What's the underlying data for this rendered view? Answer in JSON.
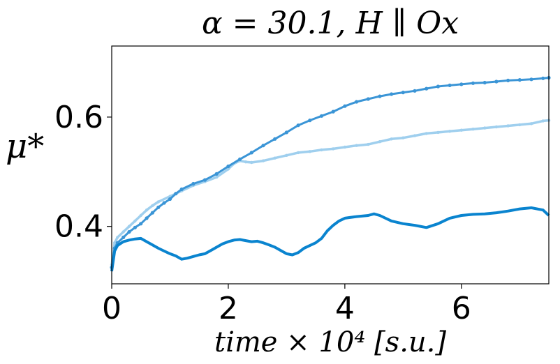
{
  "chart_data": {
    "type": "line",
    "title": "α = 30.1, H ∥ Ox",
    "title_vector_symbol": "H",
    "xlabel": "time × 10⁴ [s.u.]",
    "ylabel": "μ*",
    "xlim": [
      0,
      7.5
    ],
    "ylim": [
      0.295,
      0.73
    ],
    "xticks": [
      "0",
      "2",
      "4",
      "6"
    ],
    "yticks": [
      "0.4",
      "0.6"
    ],
    "grid": false,
    "series": [
      {
        "color": "#0a84cf",
        "width": 4,
        "x": [
          0,
          0.05,
          0.1,
          0.2,
          0.3,
          0.4,
          0.5,
          0.6,
          0.7,
          0.8,
          0.9,
          1.0,
          1.1,
          1.2,
          1.3,
          1.4,
          1.5,
          1.6,
          1.7,
          1.8,
          1.9,
          2.0,
          2.1,
          2.2,
          2.3,
          2.4,
          2.5,
          2.6,
          2.7,
          2.8,
          2.9,
          3.0,
          3.1,
          3.2,
          3.3,
          3.4,
          3.5,
          3.6,
          3.7,
          3.8,
          3.9,
          4.0,
          4.2,
          4.4,
          4.5,
          4.6,
          4.8,
          5.0,
          5.2,
          5.4,
          5.6,
          5.8,
          6.0,
          6.2,
          6.4,
          6.6,
          6.8,
          7.0,
          7.2,
          7.4,
          7.5
        ],
        "y": [
          0.318,
          0.355,
          0.365,
          0.372,
          0.375,
          0.377,
          0.378,
          0.372,
          0.366,
          0.36,
          0.355,
          0.35,
          0.346,
          0.34,
          0.342,
          0.345,
          0.348,
          0.35,
          0.356,
          0.362,
          0.368,
          0.372,
          0.375,
          0.376,
          0.374,
          0.372,
          0.373,
          0.37,
          0.366,
          0.362,
          0.356,
          0.35,
          0.348,
          0.352,
          0.36,
          0.365,
          0.37,
          0.378,
          0.392,
          0.402,
          0.41,
          0.415,
          0.418,
          0.42,
          0.423,
          0.42,
          0.41,
          0.405,
          0.402,
          0.398,
          0.405,
          0.415,
          0.42,
          0.422,
          0.423,
          0.425,
          0.428,
          0.432,
          0.434,
          0.43,
          0.42
        ]
      },
      {
        "color": "#3b95d6",
        "width": 3,
        "markers": "star",
        "x": [
          0,
          0.05,
          0.1,
          0.2,
          0.3,
          0.4,
          0.5,
          0.6,
          0.7,
          0.8,
          0.9,
          1.0,
          1.1,
          1.2,
          1.4,
          1.6,
          1.8,
          2.0,
          2.2,
          2.4,
          2.6,
          2.8,
          3.0,
          3.2,
          3.4,
          3.6,
          3.8,
          4.0,
          4.2,
          4.4,
          4.6,
          4.8,
          5.0,
          5.2,
          5.4,
          5.6,
          5.8,
          6.0,
          6.2,
          6.4,
          6.6,
          6.8,
          7.0,
          7.2,
          7.4,
          7.5
        ],
        "y": [
          0.325,
          0.36,
          0.37,
          0.38,
          0.39,
          0.398,
          0.405,
          0.415,
          0.425,
          0.435,
          0.443,
          0.45,
          0.46,
          0.468,
          0.478,
          0.485,
          0.496,
          0.51,
          0.523,
          0.535,
          0.548,
          0.56,
          0.572,
          0.585,
          0.594,
          0.602,
          0.61,
          0.62,
          0.628,
          0.633,
          0.638,
          0.642,
          0.645,
          0.648,
          0.652,
          0.656,
          0.658,
          0.66,
          0.662,
          0.663,
          0.665,
          0.667,
          0.668,
          0.669,
          0.671,
          0.672
        ]
      },
      {
        "color": "#9fcfee",
        "width": 3.5,
        "markers": "dot",
        "x": [
          0,
          0.05,
          0.1,
          0.2,
          0.3,
          0.4,
          0.5,
          0.6,
          0.7,
          0.8,
          1.0,
          1.2,
          1.4,
          1.6,
          1.8,
          2.0,
          2.1,
          2.2,
          2.3,
          2.4,
          2.6,
          2.8,
          3.0,
          3.2,
          3.4,
          3.6,
          3.8,
          4.0,
          4.2,
          4.4,
          4.6,
          4.8,
          5.0,
          5.2,
          5.4,
          5.6,
          5.8,
          6.0,
          6.2,
          6.4,
          6.6,
          6.8,
          7.0,
          7.2,
          7.4,
          7.5
        ],
        "y": [
          0.33,
          0.37,
          0.38,
          0.39,
          0.4,
          0.41,
          0.42,
          0.43,
          0.438,
          0.445,
          0.455,
          0.465,
          0.475,
          0.482,
          0.49,
          0.505,
          0.515,
          0.52,
          0.518,
          0.517,
          0.52,
          0.525,
          0.53,
          0.535,
          0.537,
          0.54,
          0.542,
          0.545,
          0.548,
          0.55,
          0.555,
          0.56,
          0.562,
          0.566,
          0.57,
          0.572,
          0.574,
          0.576,
          0.578,
          0.58,
          0.582,
          0.584,
          0.586,
          0.588,
          0.593,
          0.594
        ]
      }
    ]
  }
}
